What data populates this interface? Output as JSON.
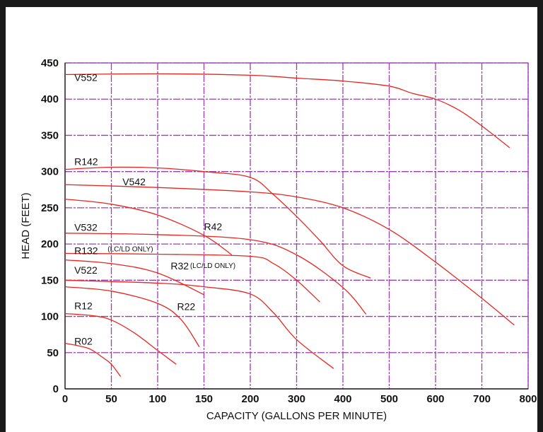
{
  "chart_data": {
    "type": "line",
    "xlabel": "CAPACITY (GALLONS PER MINUTE)",
    "ylabel": "HEAD (FEET)",
    "xlim": [
      0,
      800
    ],
    "ylim": [
      0,
      450
    ],
    "xticks": [
      0,
      50,
      100,
      150,
      200,
      300,
      400,
      500,
      600,
      700,
      800
    ],
    "xtick_labels": [
      "0",
      "50",
      "100",
      "150",
      "200",
      "300",
      "400",
      "500",
      "600",
      "700",
      "800"
    ],
    "yticks": [
      0,
      50,
      100,
      150,
      200,
      250,
      300,
      350,
      400,
      450
    ],
    "ytick_labels": [
      "0",
      "50",
      "100",
      "150",
      "200",
      "250",
      "300",
      "350",
      "400",
      "450"
    ],
    "x_axis_note": "piecewise scale: 0-200 GPM uses one spacing per 50 GPM, 200-800 GPM uses the same spacing per 100 GPM",
    "grid": true,
    "grid_color": "#9b3fb0",
    "curve_color": "#e8261f",
    "series": [
      {
        "name": "V552",
        "x": [
          0,
          100,
          200,
          300,
          400,
          500,
          550,
          600,
          650,
          700,
          760
        ],
        "y": [
          434,
          435,
          433,
          429,
          425,
          418,
          408,
          400,
          385,
          363,
          333
        ]
      },
      {
        "name": "R142",
        "x": [
          0,
          50,
          100,
          150,
          200,
          250,
          300,
          350,
          400,
          460
        ],
        "y": [
          303,
          306,
          305,
          300,
          292,
          268,
          238,
          205,
          170,
          153
        ]
      },
      {
        "name": "V542",
        "x": [
          0,
          100,
          200,
          300,
          400,
          500,
          600,
          700,
          770
        ],
        "y": [
          282,
          278,
          272,
          265,
          250,
          220,
          175,
          125,
          88
        ]
      },
      {
        "name": "R42",
        "x": [
          0,
          50,
          100,
          150,
          180
        ],
        "y": [
          262,
          255,
          240,
          212,
          185
        ]
      },
      {
        "name": "V532",
        "x": [
          0,
          100,
          200,
          300,
          400,
          450
        ],
        "y": [
          215,
          213,
          206,
          185,
          140,
          103
        ]
      },
      {
        "name": "R132",
        "note": "(LC/LD ONLY)",
        "x": [
          0,
          100,
          200,
          250,
          300,
          350
        ],
        "y": [
          187,
          186,
          183,
          173,
          150,
          120
        ]
      },
      {
        "name": "R32",
        "note": "(LC/LD ONLY)",
        "x": [
          0,
          50,
          100,
          150
        ],
        "y": [
          178,
          173,
          160,
          130
        ]
      },
      {
        "name": "V522",
        "x": [
          0,
          100,
          150,
          200,
          250,
          300,
          380
        ],
        "y": [
          150,
          146,
          141,
          131,
          105,
          68,
          28
        ]
      },
      {
        "name": "R22",
        "x": [
          0,
          50,
          100,
          125,
          145
        ],
        "y": [
          141,
          135,
          118,
          96,
          58
        ]
      },
      {
        "name": "R12",
        "x": [
          0,
          30,
          50,
          75,
          100,
          120
        ],
        "y": [
          104,
          101,
          95,
          77,
          53,
          34
        ]
      },
      {
        "name": "R02",
        "x": [
          0,
          25,
          40,
          50,
          60
        ],
        "y": [
          63,
          56,
          44,
          34,
          17
        ]
      }
    ],
    "series_labels": [
      {
        "text": "V552",
        "gpm": 10,
        "head": 425
      },
      {
        "text": "R142",
        "gpm": 10,
        "head": 309
      },
      {
        "text": "V542",
        "gpm": 62,
        "head": 281
      },
      {
        "text": "R42",
        "gpm": 150,
        "head": 219
      },
      {
        "text": "V532",
        "gpm": 10,
        "head": 218
      },
      {
        "text": "R132",
        "gpm": 10,
        "head": 186
      },
      {
        "text": "(LC/LD ONLY)",
        "gpm": 46,
        "head": 190,
        "small": true
      },
      {
        "text": "R32",
        "gpm": 114,
        "head": 165
      },
      {
        "text": "(LC/LD ONLY)",
        "gpm": 135,
        "head": 167,
        "small": true
      },
      {
        "text": "V522",
        "gpm": 10,
        "head": 159
      },
      {
        "text": "R22",
        "gpm": 121,
        "head": 109
      },
      {
        "text": "R12",
        "gpm": 10,
        "head": 110
      },
      {
        "text": "R02",
        "gpm": 10,
        "head": 61
      }
    ]
  }
}
